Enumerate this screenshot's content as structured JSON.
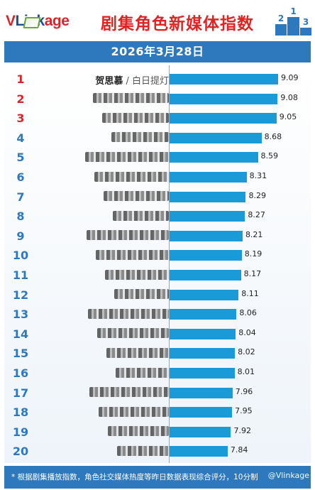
{
  "header": {
    "logo": {
      "prefix": "V",
      "mid": "Link",
      "suffix": "age"
    },
    "title": "剧集角色新媒体指数",
    "podium_labels": [
      "2",
      "1",
      "3"
    ]
  },
  "date": "2026年3月28日",
  "footer": "* 根据剧集播放指数，角色社交媒体热度等昨日数据表现综合评分，10分制",
  "watermark": "@Vlinkage",
  "colors": {
    "accent": "#2e78be",
    "bar": "#1a9bd7",
    "rank_top": "#d6262c",
    "rank_other": "#2e78be"
  },
  "chart_data": {
    "type": "bar",
    "orientation": "horizontal",
    "title": "剧集角色新媒体指数",
    "x_range": [
      6.4,
      9.09
    ],
    "grid": false,
    "categories": [
      "1",
      "2",
      "3",
      "4",
      "5",
      "6",
      "7",
      "8",
      "9",
      "10",
      "11",
      "12",
      "13",
      "14",
      "15",
      "16",
      "17",
      "18",
      "19",
      "20"
    ],
    "rows": [
      {
        "rank": "1",
        "actor": "贺思慕",
        "role": "白日提灯",
        "value": 9.09
      },
      {
        "rank": "2",
        "actor": "",
        "role": "",
        "value": 9.08
      },
      {
        "rank": "3",
        "actor": "",
        "role": "",
        "value": 9.05
      },
      {
        "rank": "4",
        "actor": "",
        "role": "",
        "value": 8.68
      },
      {
        "rank": "5",
        "actor": "",
        "role": "",
        "value": 8.59
      },
      {
        "rank": "6",
        "actor": "",
        "role": "",
        "value": 8.31
      },
      {
        "rank": "7",
        "actor": "",
        "role": "",
        "value": 8.29
      },
      {
        "rank": "8",
        "actor": "",
        "role": "",
        "value": 8.27
      },
      {
        "rank": "9",
        "actor": "",
        "role": "",
        "value": 8.21
      },
      {
        "rank": "10",
        "actor": "",
        "role": "",
        "value": 8.19
      },
      {
        "rank": "11",
        "actor": "",
        "role": "",
        "value": 8.17
      },
      {
        "rank": "12",
        "actor": "",
        "role": "",
        "value": 8.11
      },
      {
        "rank": "13",
        "actor": "",
        "role": "",
        "value": 8.06
      },
      {
        "rank": "14",
        "actor": "",
        "role": "",
        "value": 8.04
      },
      {
        "rank": "15",
        "actor": "",
        "role": "",
        "value": 8.02
      },
      {
        "rank": "16",
        "actor": "",
        "role": "",
        "value": 8.01
      },
      {
        "rank": "17",
        "actor": "",
        "role": "",
        "value": 7.96
      },
      {
        "rank": "18",
        "actor": "",
        "role": "",
        "value": 7.95
      },
      {
        "rank": "19",
        "actor": "",
        "role": "",
        "value": 7.92
      },
      {
        "rank": "20",
        "actor": "",
        "role": "",
        "value": 7.84
      }
    ]
  }
}
